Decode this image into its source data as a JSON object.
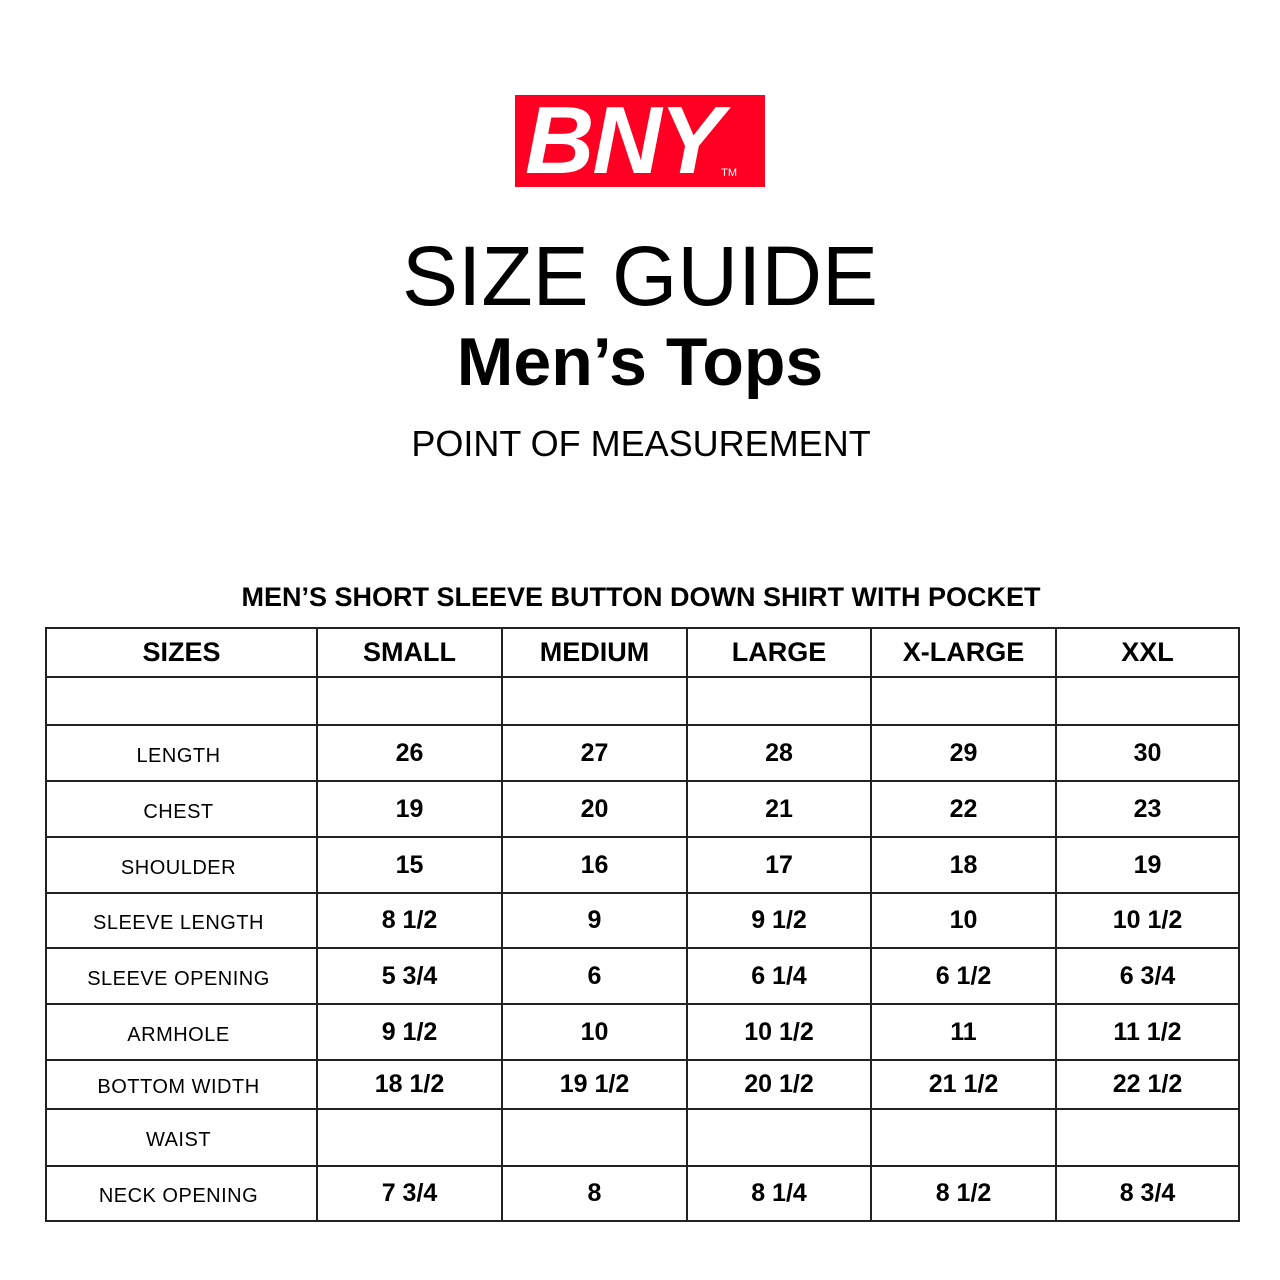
{
  "brand": {
    "logo_text": "BNY",
    "trademark": "TM",
    "color": "#ff0022"
  },
  "title": "SIZE GUIDE",
  "subtitle": "Men’s Tops",
  "section": "POINT OF MEASUREMENT",
  "table_title": "MEN’S SHORT SLEEVE BUTTON DOWN SHIRT WITH POCKET",
  "table": {
    "headers": [
      "SIZES",
      "SMALL",
      "MEDIUM",
      "LARGE",
      "X-LARGE",
      "XXL"
    ],
    "rows": [
      {
        "label": "",
        "values": [
          "",
          "",
          "",
          "",
          ""
        ]
      },
      {
        "label": "LENGTH",
        "values": [
          "26",
          "27",
          "28",
          "29",
          "30"
        ]
      },
      {
        "label": "CHEST",
        "values": [
          "19",
          "20",
          "21",
          "22",
          "23"
        ]
      },
      {
        "label": "SHOULDER",
        "values": [
          "15",
          "16",
          "17",
          "18",
          "19"
        ]
      },
      {
        "label": "SLEEVE LENGTH",
        "values": [
          "8 1/2",
          "9",
          "9 1/2",
          "10",
          "10 1/2"
        ]
      },
      {
        "label": "SLEEVE OPENING",
        "values": [
          "5 3/4",
          "6",
          "6 1/4",
          "6 1/2",
          "6 3/4"
        ]
      },
      {
        "label": "ARMHOLE",
        "values": [
          "9 1/2",
          "10",
          "10 1/2",
          "11",
          "11 1/2"
        ]
      },
      {
        "label": "BOTTOM WIDTH",
        "values": [
          "18 1/2",
          "19 1/2",
          "20 1/2",
          "21 1/2",
          "22 1/2"
        ]
      },
      {
        "label": "WAIST",
        "values": [
          "",
          "",
          "",
          "",
          ""
        ]
      },
      {
        "label": "NECK OPENING",
        "values": [
          "7 3/4",
          "8",
          "8 1/4",
          "8 1/2",
          "8 3/4"
        ]
      }
    ]
  }
}
